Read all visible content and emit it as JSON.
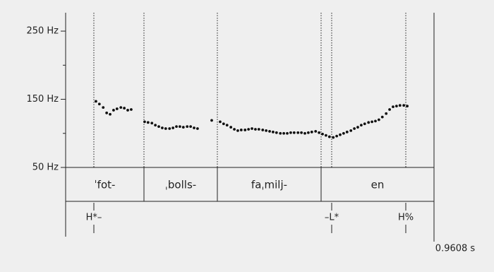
{
  "chart_data": {
    "type": "scatter",
    "color": "#111111",
    "xlim": [
      0,
      0.9608
    ],
    "xticks": [
      {
        "value": 0.9608,
        "label": "0.9608 s"
      }
    ],
    "ylim": [
      50,
      277
    ],
    "yticks": [
      {
        "value": 250,
        "label": "250 Hz"
      },
      {
        "value": 150,
        "label": "150 Hz"
      },
      {
        "value": 50,
        "label": "50 Hz"
      }
    ],
    "yminor_ticks": [
      200,
      100
    ],
    "x": [
      0.079,
      0.088,
      0.098,
      0.107,
      0.116,
      0.125,
      0.134,
      0.144,
      0.153,
      0.162,
      0.171,
      0.206,
      0.215,
      0.225,
      0.234,
      0.243,
      0.252,
      0.261,
      0.271,
      0.28,
      0.289,
      0.298,
      0.307,
      0.317,
      0.326,
      0.335,
      0.344,
      0.381,
      0.403,
      0.412,
      0.421,
      0.431,
      0.44,
      0.449,
      0.458,
      0.468,
      0.477,
      0.486,
      0.495,
      0.504,
      0.514,
      0.523,
      0.532,
      0.541,
      0.55,
      0.56,
      0.569,
      0.578,
      0.587,
      0.596,
      0.606,
      0.615,
      0.624,
      0.633,
      0.642,
      0.652,
      0.661,
      0.67,
      0.679,
      0.688,
      0.698,
      0.707,
      0.716,
      0.725,
      0.734,
      0.744,
      0.753,
      0.762,
      0.771,
      0.78,
      0.79,
      0.799,
      0.808,
      0.817,
      0.826,
      0.836,
      0.845,
      0.854,
      0.863,
      0.872,
      0.882,
      0.891
    ],
    "values": [
      147,
      143,
      138,
      130,
      128,
      134,
      136,
      138,
      137,
      134,
      135,
      117,
      116,
      115,
      112,
      110,
      108,
      107,
      107,
      108,
      110,
      110,
      109,
      110,
      110,
      108,
      107,
      119,
      117,
      114,
      112,
      109,
      106,
      104,
      105,
      105,
      106,
      107,
      106,
      106,
      105,
      104,
      103,
      102,
      101,
      100,
      100,
      100,
      101,
      101,
      101,
      101,
      100,
      101,
      102,
      103,
      101,
      99,
      97,
      95,
      94,
      96,
      98,
      100,
      102,
      104,
      107,
      109,
      112,
      114,
      116,
      117,
      118,
      120,
      124,
      129,
      135,
      139,
      140,
      141,
      141,
      140
    ],
    "boundaries": [
      0.2043,
      0.3957,
      0.6663
    ],
    "syllables": [
      "ˈfot-",
      "ˌbolls-",
      "faˌmilj-",
      "en"
    ],
    "tones": [
      {
        "time": 0.0736,
        "label": "H*–"
      },
      {
        "time": 0.6939,
        "label": "–L*"
      },
      {
        "time": 0.8872,
        "label": "H%"
      }
    ]
  }
}
